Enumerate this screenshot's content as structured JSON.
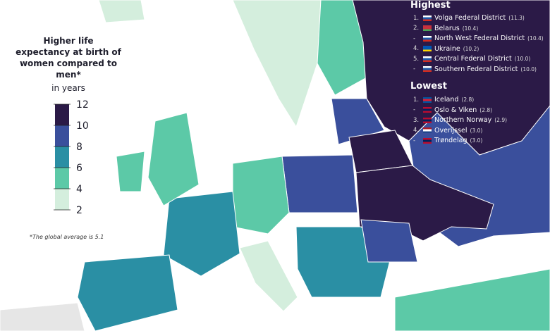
{
  "legend": {
    "title": "Higher life expectancy at birth of women compared to men*",
    "unit": "in years",
    "ticks": [
      2,
      4,
      6,
      8,
      10,
      12
    ],
    "colors": [
      "#d4eedd",
      "#5cc9a7",
      "#2a8fa4",
      "#3a4f9c",
      "#2b1a47"
    ]
  },
  "note": "*The global average is 5.1",
  "highest": {
    "title": "Highest",
    "items": [
      {
        "rank": "1.",
        "name": "Volga Federal District",
        "value": "(11.3)"
      },
      {
        "rank": "2.",
        "name": "Belarus",
        "value": "(10.4)"
      },
      {
        "rank": "-",
        "name": "North West Federal District",
        "value": "(10.4)"
      },
      {
        "rank": "4.",
        "name": "Ukraine",
        "value": "(10.2)"
      },
      {
        "rank": "5.",
        "name": "Central Federal District",
        "value": "(10.0)"
      },
      {
        "rank": "-",
        "name": "Southern Federal District",
        "value": "(10.0)"
      }
    ]
  },
  "lowest": {
    "title": "Lowest",
    "items": [
      {
        "rank": "1.",
        "name": "Iceland",
        "value": "(2.8)"
      },
      {
        "rank": "-",
        "name": "Oslo & Viken",
        "value": "(2.8)"
      },
      {
        "rank": "3.",
        "name": "Northern Norway",
        "value": "(2.9)"
      },
      {
        "rank": "4.",
        "name": "Overijssel",
        "value": "(3.0)"
      },
      {
        "rank": "-",
        "name": "Trøndelag",
        "value": "(3.0)"
      }
    ]
  }
}
